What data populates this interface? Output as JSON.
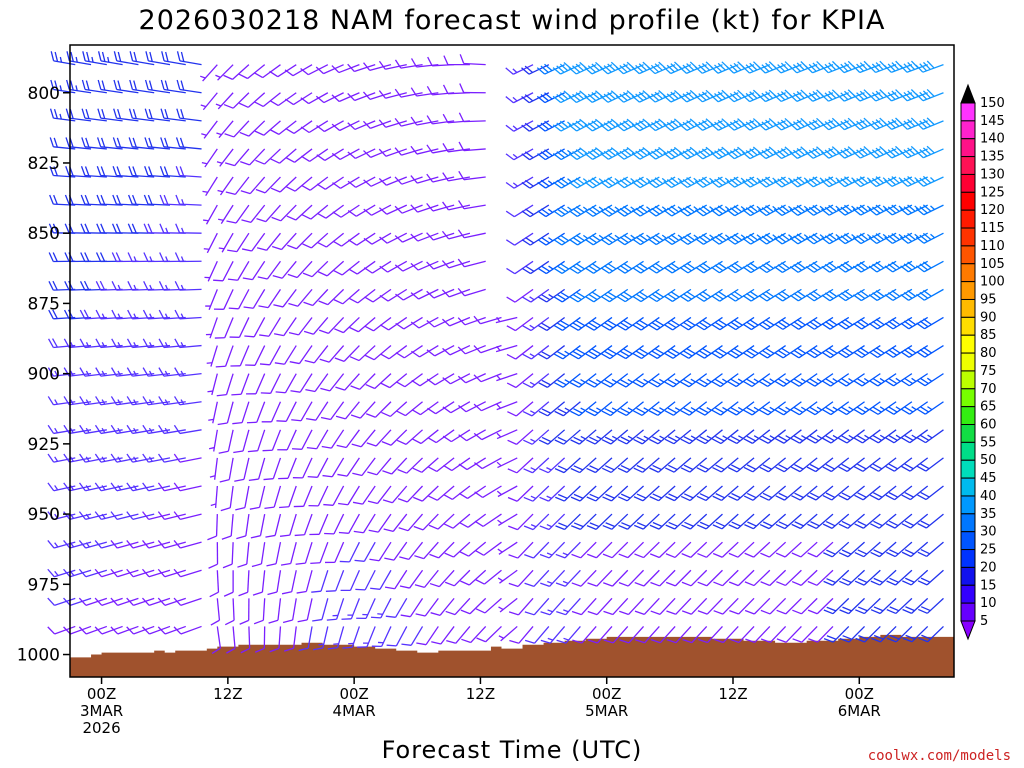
{
  "chart_data": {
    "type": "wind-barb-time-height",
    "title": "2026030218 NAM forecast wind profile (kt) for KPIA",
    "xlabel": "Forecast Time (UTC)",
    "ylabel": "",
    "y_axis": {
      "units": "hPa",
      "range": [
        1008,
        783
      ],
      "ticks": [
        {
          "value": 800,
          "label": "800"
        },
        {
          "value": 825,
          "label": "825"
        },
        {
          "value": 850,
          "label": "850"
        },
        {
          "value": 875,
          "label": "875"
        },
        {
          "value": 900,
          "label": "900"
        },
        {
          "value": 925,
          "label": "925"
        },
        {
          "value": 950,
          "label": "950"
        },
        {
          "value": 975,
          "label": "975"
        },
        {
          "value": 1000,
          "label": "1000"
        }
      ]
    },
    "x_axis": {
      "units": "forecast hours since 2026-03-02 18Z",
      "range": [
        3,
        87
      ],
      "ticks": [
        {
          "hour": 6,
          "lines": [
            "00Z",
            "3MAR",
            "2026"
          ]
        },
        {
          "hour": 18,
          "lines": [
            "12Z"
          ]
        },
        {
          "hour": 30,
          "lines": [
            "00Z",
            "4MAR"
          ]
        },
        {
          "hour": 42,
          "lines": [
            "12Z"
          ]
        },
        {
          "hour": 54,
          "lines": [
            "00Z",
            "5MAR"
          ]
        },
        {
          "hour": 66,
          "lines": [
            "12Z"
          ]
        },
        {
          "hour": 78,
          "lines": [
            "00Z",
            "6MAR"
          ]
        }
      ]
    },
    "colorbar": {
      "units": "kt",
      "labels": [
        "150",
        "145",
        "140",
        "135",
        "130",
        "125",
        "120",
        "115",
        "110",
        "105",
        "100",
        "95",
        "90",
        "85",
        "80",
        "75",
        "70",
        "65",
        "60",
        "55",
        "50",
        "45",
        "40",
        "35",
        "30",
        "25",
        "20",
        "15",
        "10",
        "5"
      ],
      "colors": [
        "#ff33ff",
        "#ff22cc",
        "#ff1188",
        "#ff1155",
        "#ff0033",
        "#ff0000",
        "#ff1a00",
        "#ff3300",
        "#ff5500",
        "#ff7a00",
        "#ff9900",
        "#ffbb00",
        "#ffdd00",
        "#ffff00",
        "#eeff00",
        "#bbff00",
        "#77ff00",
        "#33ee11",
        "#11dd44",
        "#00dd88",
        "#00ddbb",
        "#00bbee",
        "#0099ff",
        "#0077ff",
        "#0055ff",
        "#0033ff",
        "#1111ee",
        "#3300ff",
        "#6600ff"
      ],
      "top_arrow_color": "#000000",
      "bottom_arrow_color": "#8800ff"
    },
    "terrain": {
      "color": "#a0522d",
      "top_pressure_by_hour": [
        [
          3,
          1001
        ],
        [
          5,
          1000
        ],
        [
          6,
          999.3
        ],
        [
          10,
          999.3
        ],
        [
          11,
          998.6
        ],
        [
          12,
          999.3
        ],
        [
          13,
          998.6
        ],
        [
          16,
          997.9
        ],
        [
          17,
          997.2
        ],
        [
          19,
          996.5
        ],
        [
          25,
          995.8
        ],
        [
          27,
          996.5
        ],
        [
          28,
          996.5
        ],
        [
          30,
          997.2
        ],
        [
          32,
          997.9
        ],
        [
          34,
          998.6
        ],
        [
          36,
          999.3
        ],
        [
          38,
          998.6
        ],
        [
          43,
          997.2
        ],
        [
          44,
          997.9
        ],
        [
          46,
          996.5
        ],
        [
          48,
          995.8
        ],
        [
          50,
          995.1
        ],
        [
          52,
          994.4
        ],
        [
          54,
          993.7
        ],
        [
          60,
          993.7
        ],
        [
          64,
          994.4
        ],
        [
          67,
          995.1
        ],
        [
          70,
          995.8
        ],
        [
          72,
          995.8
        ],
        [
          73,
          995.1
        ],
        [
          76,
          994.4
        ],
        [
          78,
          993.7
        ],
        [
          80,
          993
        ],
        [
          82,
          993.7
        ],
        [
          84,
          993.7
        ],
        [
          87,
          993
        ]
      ]
    },
    "wind_field_summary": "Wind barbs every ~1.5 h at pressure levels from about 990 to 787 hPa. Weak (5–15 kt, purple) winds from 3MAR 12Z through 4MAR 12Z; stronger southwesterly to westerly 25–40 kt (blue/cyan) winds above 900 hPa after 4MAR 15Z; blank (calm/missing) column near 4MAR 12Z above 880 hPa.",
    "barb_cols_start_hour": 3.5,
    "barb_cols_step_hours": 1.5,
    "barb_cols_count": 56,
    "barb_levels_hpa": [
      990,
      980,
      970,
      960,
      950,
      940,
      930,
      920,
      910,
      900,
      890,
      880,
      870,
      860,
      850,
      840,
      830,
      820,
      810,
      800,
      790
    ]
  },
  "credit": "coolwx.com/models"
}
